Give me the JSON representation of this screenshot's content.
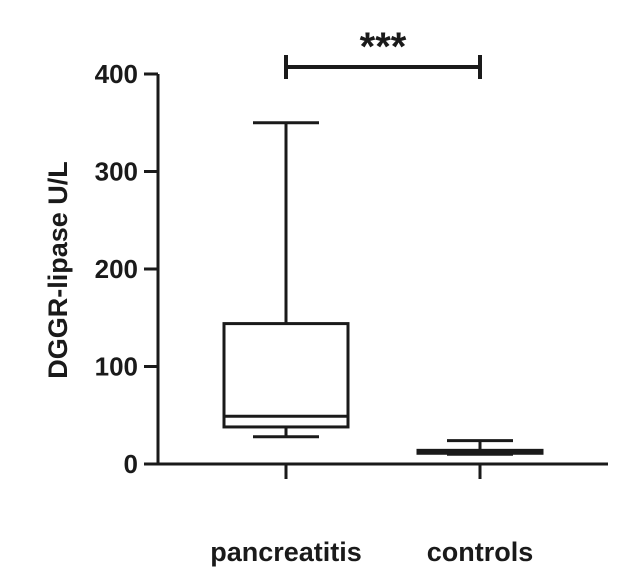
{
  "chart_data": {
    "type": "box",
    "title": "",
    "xlabel": "",
    "ylabel": "DGGR-lipase U/L",
    "ylim": [
      0,
      400
    ],
    "yticks": [
      0,
      100,
      200,
      300,
      400
    ],
    "ytick_labels": [
      "0",
      "100",
      "200",
      "300",
      "400"
    ],
    "categories": [
      "pancreatitis",
      "controls"
    ],
    "boxes": [
      {
        "category": "pancreatitis",
        "min": 28,
        "q1": 38,
        "median": 49,
        "q3": 144,
        "max": 350
      },
      {
        "category": "controls",
        "min": 10,
        "q1": 11,
        "median": 13,
        "q3": 14,
        "max": 24
      }
    ],
    "significance": {
      "between": [
        "pancreatitis",
        "controls"
      ],
      "label": "***"
    },
    "grid": false,
    "legend": "none"
  },
  "colors": {
    "ink": "#1a1a1a",
    "background": "#ffffff",
    "box_fill": "#ffffff"
  }
}
